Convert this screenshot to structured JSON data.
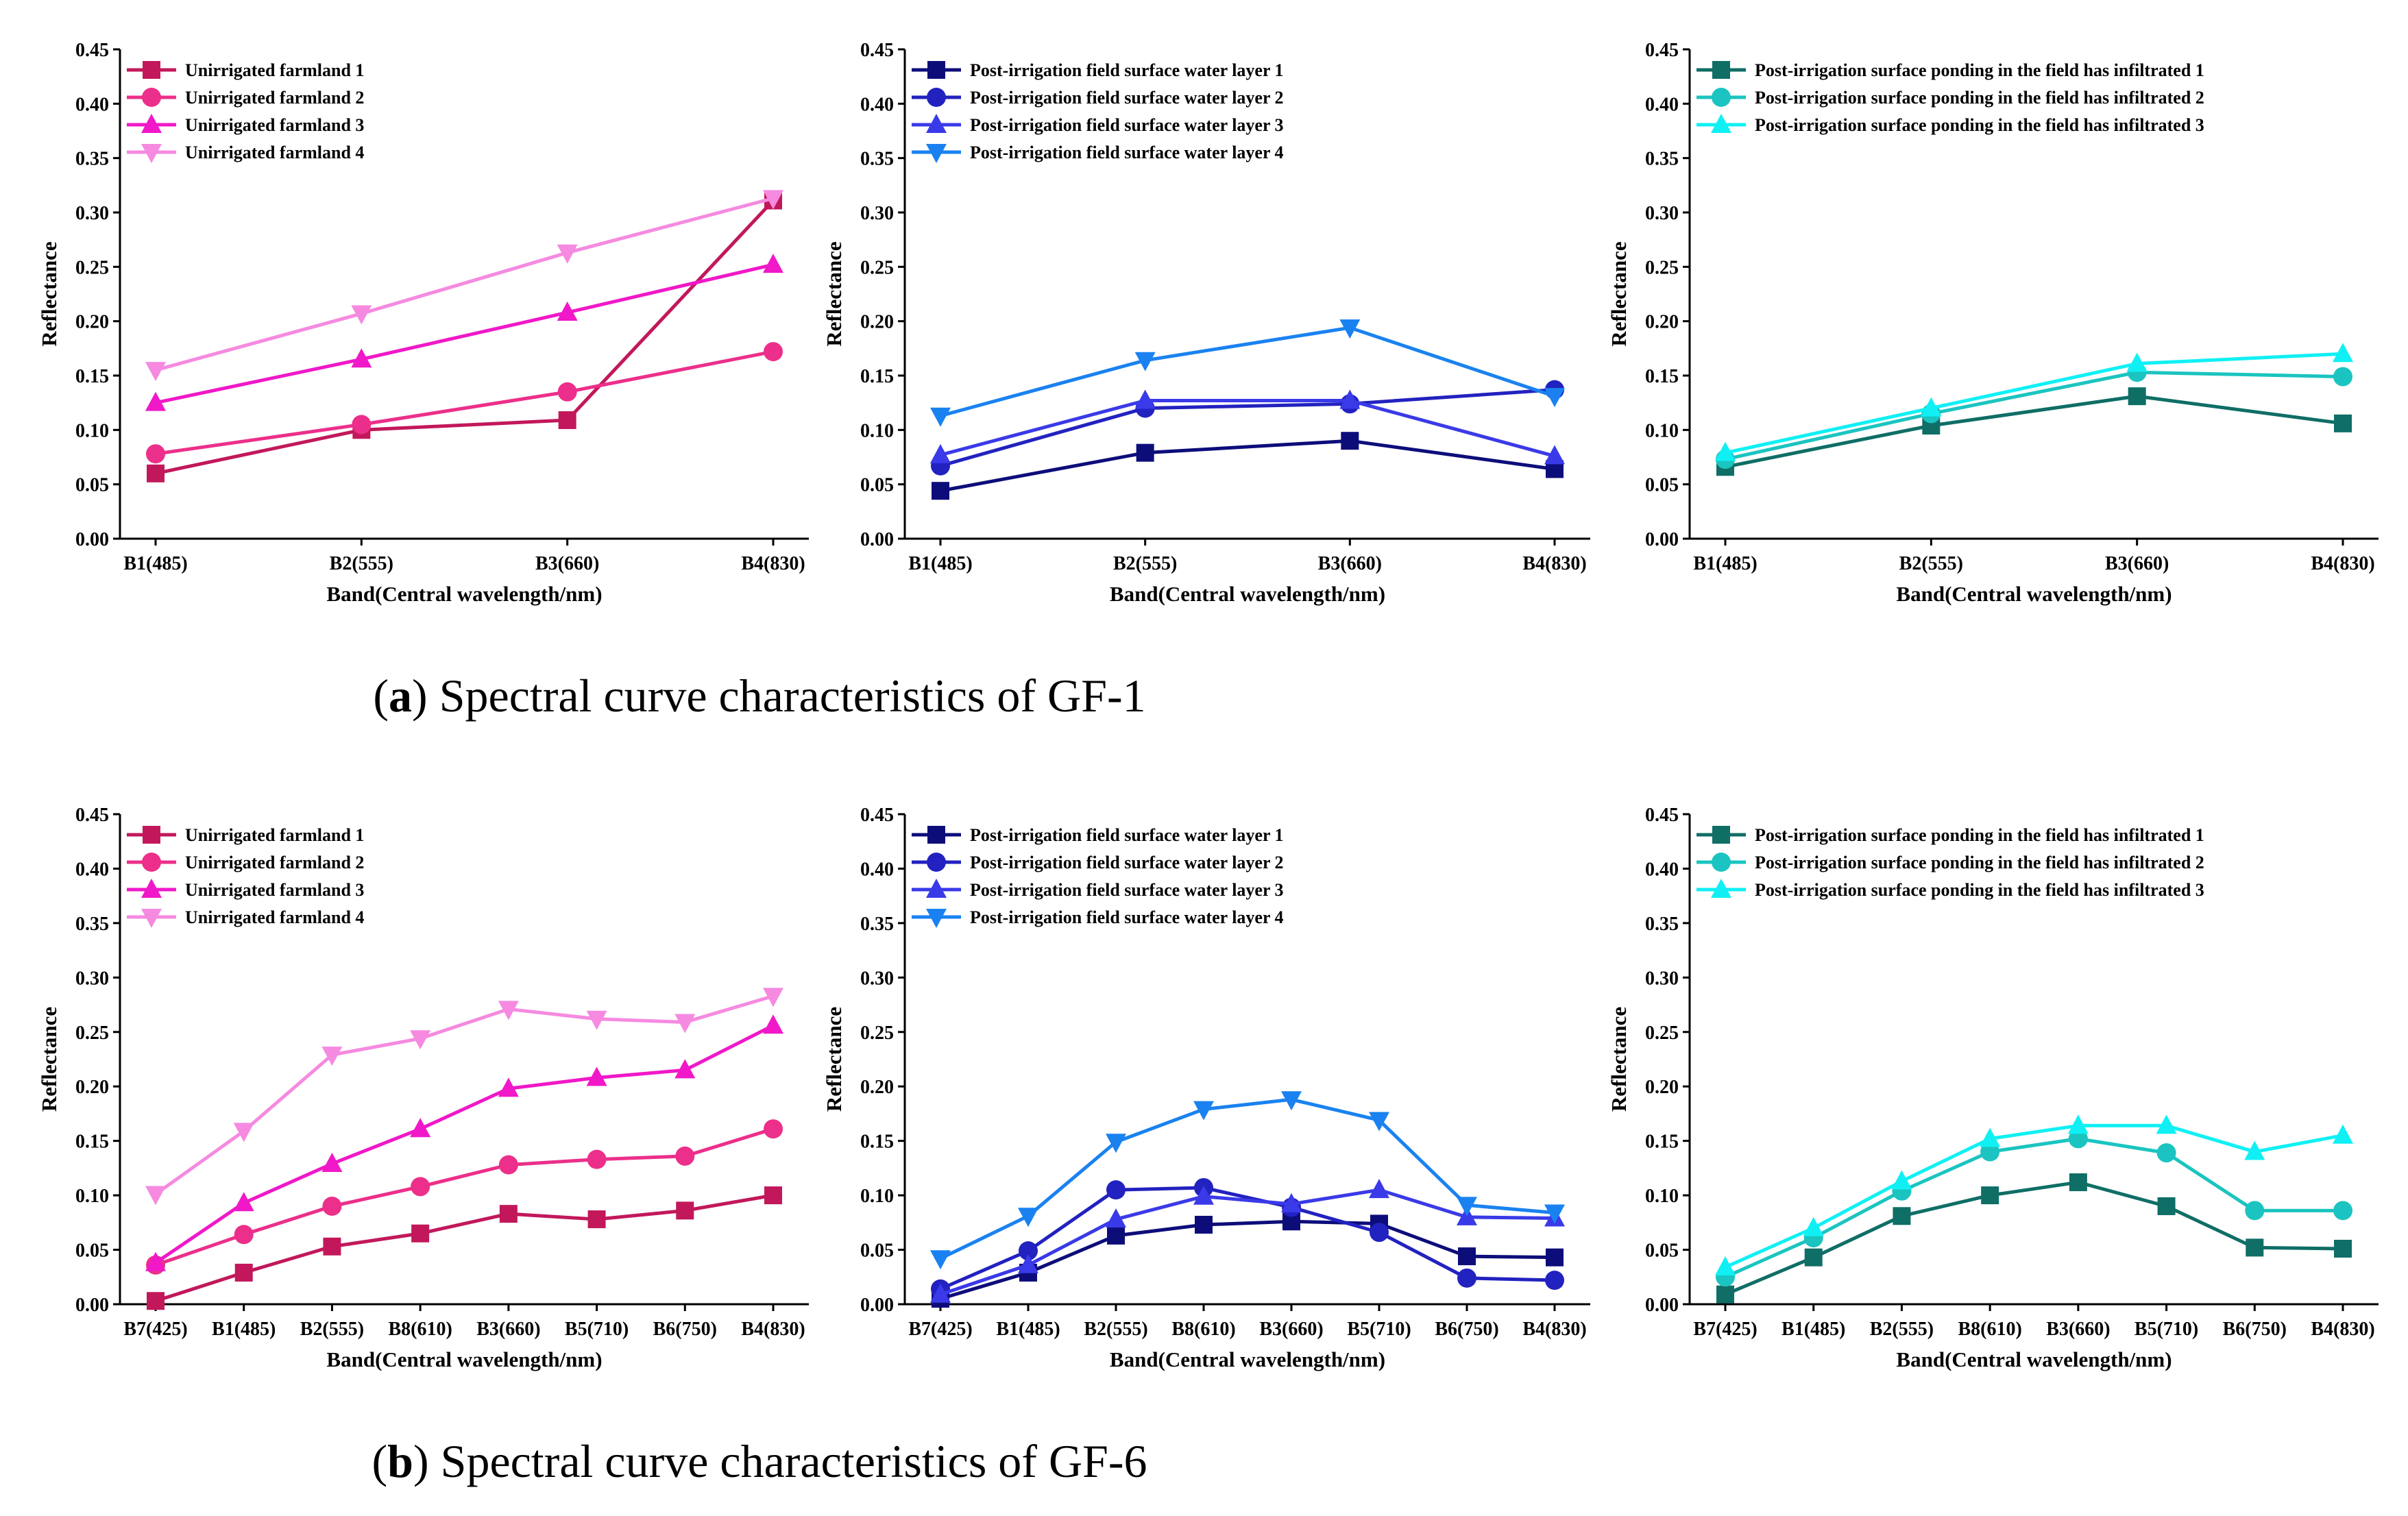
{
  "captions": [
    {
      "letter": "a",
      "paren_open": "(",
      "paren_close": ")",
      "text": " Spectral curve characteristics of GF-1"
    },
    {
      "letter": "b",
      "paren_open": "(",
      "paren_close": ")",
      "text": " Spectral curve characteristics of GF-6"
    }
  ],
  "chart_data": [
    {
      "id": "gf1-unirrigated",
      "type": "line",
      "xlabel": "Band(Central wavelength/nm)",
      "ylabel": "Reflectance",
      "ylim": [
        0,
        0.45
      ],
      "yticks": [
        "0.00",
        "0.05",
        "0.10",
        "0.15",
        "0.20",
        "0.25",
        "0.30",
        "0.35",
        "0.40",
        "0.45"
      ],
      "categories": [
        "B1(485)",
        "B2(555)",
        "B3(660)",
        "B4(830)"
      ],
      "series": [
        {
          "name": "Unirrigated farmland 1",
          "color": "#c2185b",
          "marker": "square",
          "values": [
            0.06,
            0.1,
            0.109,
            0.311
          ]
        },
        {
          "name": "Unirrigated farmland 2",
          "color": "#ec2f8a",
          "marker": "circle",
          "values": [
            0.078,
            0.105,
            0.135,
            0.172
          ]
        },
        {
          "name": "Unirrigated farmland 3",
          "color": "#f018c8",
          "marker": "triangle-up",
          "values": [
            0.125,
            0.165,
            0.208,
            0.252
          ]
        },
        {
          "name": "Unirrigated farmland 4",
          "color": "#f58ae0",
          "marker": "triangle-down",
          "values": [
            0.155,
            0.207,
            0.263,
            0.313
          ]
        }
      ]
    },
    {
      "id": "gf1-water-layer",
      "type": "line",
      "xlabel": "Band(Central wavelength/nm)",
      "ylabel": "Reflectance",
      "ylim": [
        0,
        0.45
      ],
      "yticks": [
        "0.00",
        "0.05",
        "0.10",
        "0.15",
        "0.20",
        "0.25",
        "0.30",
        "0.35",
        "0.40",
        "0.45"
      ],
      "categories": [
        "B1(485)",
        "B2(555)",
        "B3(660)",
        "B4(830)"
      ],
      "series": [
        {
          "name": "Post-irrigation field surface water layer 1",
          "color": "#0d0d7a",
          "marker": "square",
          "values": [
            0.044,
            0.079,
            0.09,
            0.064
          ]
        },
        {
          "name": "Post-irrigation field surface water layer 2",
          "color": "#2222c0",
          "marker": "circle",
          "values": [
            0.067,
            0.12,
            0.124,
            0.137
          ]
        },
        {
          "name": "Post-irrigation field surface water layer 3",
          "color": "#3a3ae8",
          "marker": "triangle-up",
          "values": [
            0.077,
            0.127,
            0.127,
            0.076
          ]
        },
        {
          "name": "Post-irrigation field surface water layer 4",
          "color": "#1a82f0",
          "marker": "triangle-down",
          "values": [
            0.113,
            0.164,
            0.194,
            0.131
          ]
        }
      ]
    },
    {
      "id": "gf1-ponding",
      "type": "line",
      "xlabel": "Band(Central wavelength/nm)",
      "ylabel": "Reflectance",
      "ylim": [
        0,
        0.45
      ],
      "yticks": [
        "0.00",
        "0.05",
        "0.10",
        "0.15",
        "0.20",
        "0.25",
        "0.30",
        "0.35",
        "0.40",
        "0.45"
      ],
      "categories": [
        "B1(485)",
        "B2(555)",
        "B3(660)",
        "B4(830)"
      ],
      "series": [
        {
          "name": "Post-irrigation surface ponding in the field has infiltrated 1",
          "color": "#0f6e66",
          "marker": "square",
          "values": [
            0.066,
            0.104,
            0.131,
            0.106
          ]
        },
        {
          "name": "Post-irrigation surface ponding in the field has infiltrated 2",
          "color": "#1bc4c0",
          "marker": "circle",
          "values": [
            0.073,
            0.115,
            0.153,
            0.149
          ]
        },
        {
          "name": "Post-irrigation surface ponding in the field has infiltrated 3",
          "color": "#10f0f4",
          "marker": "triangle-up",
          "values": [
            0.079,
            0.12,
            0.161,
            0.17
          ]
        }
      ]
    },
    {
      "id": "gf6-unirrigated",
      "type": "line",
      "xlabel": "Band(Central wavelength/nm)",
      "ylabel": "Reflectance",
      "ylim": [
        0,
        0.45
      ],
      "yticks": [
        "0.00",
        "0.05",
        "0.10",
        "0.15",
        "0.20",
        "0.25",
        "0.30",
        "0.35",
        "0.40",
        "0.45"
      ],
      "categories": [
        "B7(425)",
        "B1(485)",
        "B2(555)",
        "B8(610)",
        "B3(660)",
        "B5(710)",
        "B6(750)",
        "B4(830)"
      ],
      "series": [
        {
          "name": "Unirrigated farmland 1",
          "color": "#c2185b",
          "marker": "square",
          "values": [
            0.003,
            0.029,
            0.053,
            0.065,
            0.083,
            0.078,
            0.086,
            0.1
          ]
        },
        {
          "name": "Unirrigated farmland 2",
          "color": "#ec2f8a",
          "marker": "circle",
          "values": [
            0.036,
            0.064,
            0.09,
            0.108,
            0.128,
            0.133,
            0.136,
            0.161
          ]
        },
        {
          "name": "Unirrigated farmland 3",
          "color": "#f018c8",
          "marker": "triangle-up",
          "values": [
            0.038,
            0.093,
            0.129,
            0.161,
            0.198,
            0.208,
            0.215,
            0.256
          ]
        },
        {
          "name": "Unirrigated farmland 4",
          "color": "#f58ae0",
          "marker": "triangle-down",
          "values": [
            0.101,
            0.159,
            0.229,
            0.244,
            0.271,
            0.262,
            0.259,
            0.283
          ]
        }
      ]
    },
    {
      "id": "gf6-water-layer",
      "type": "line",
      "xlabel": "Band(Central wavelength/nm)",
      "ylabel": "Reflectance",
      "ylim": [
        0,
        0.45
      ],
      "yticks": [
        "0.00",
        "0.05",
        "0.10",
        "0.15",
        "0.20",
        "0.25",
        "0.30",
        "0.35",
        "0.40",
        "0.45"
      ],
      "categories": [
        "B7(425)",
        "B1(485)",
        "B2(555)",
        "B8(610)",
        "B3(660)",
        "B5(710)",
        "B6(750)",
        "B4(830)"
      ],
      "series": [
        {
          "name": "Post-irrigation field surface water layer 1",
          "color": "#0d0d7a",
          "marker": "square",
          "values": [
            0.005,
            0.029,
            0.063,
            0.073,
            0.076,
            0.074,
            0.044,
            0.043
          ]
        },
        {
          "name": "Post-irrigation field surface water layer 2",
          "color": "#2222c0",
          "marker": "circle",
          "values": [
            0.014,
            0.049,
            0.105,
            0.107,
            0.089,
            0.066,
            0.024,
            0.022
          ]
        },
        {
          "name": "Post-irrigation field surface water layer 3",
          "color": "#3a3ae8",
          "marker": "triangle-up",
          "values": [
            0.009,
            0.036,
            0.078,
            0.099,
            0.092,
            0.105,
            0.08,
            0.079
          ]
        },
        {
          "name": "Post-irrigation field surface water layer 4",
          "color": "#1a82f0",
          "marker": "triangle-down",
          "values": [
            0.042,
            0.081,
            0.149,
            0.179,
            0.188,
            0.169,
            0.091,
            0.084
          ]
        }
      ]
    },
    {
      "id": "gf6-ponding",
      "type": "line",
      "xlabel": "Band(Central wavelength/nm)",
      "ylabel": "Reflectance",
      "ylim": [
        0,
        0.45
      ],
      "yticks": [
        "0.00",
        "0.05",
        "0.10",
        "0.15",
        "0.20",
        "0.25",
        "0.30",
        "0.35",
        "0.40",
        "0.45"
      ],
      "categories": [
        "B7(425)",
        "B1(485)",
        "B2(555)",
        "B8(610)",
        "B3(660)",
        "B5(710)",
        "B6(750)",
        "B4(830)"
      ],
      "series": [
        {
          "name": "Post-irrigation surface ponding in the field has infiltrated 1",
          "color": "#0f6e66",
          "marker": "square",
          "values": [
            0.009,
            0.043,
            0.081,
            0.1,
            0.112,
            0.09,
            0.052,
            0.051
          ]
        },
        {
          "name": "Post-irrigation surface ponding in the field has infiltrated 2",
          "color": "#1bc4c0",
          "marker": "circle",
          "values": [
            0.025,
            0.061,
            0.104,
            0.14,
            0.152,
            0.139,
            0.086,
            0.086
          ]
        },
        {
          "name": "Post-irrigation surface ponding in the field has infiltrated 3",
          "color": "#10f0f4",
          "marker": "triangle-up",
          "values": [
            0.034,
            0.07,
            0.113,
            0.152,
            0.164,
            0.164,
            0.14,
            0.155
          ]
        }
      ]
    }
  ]
}
